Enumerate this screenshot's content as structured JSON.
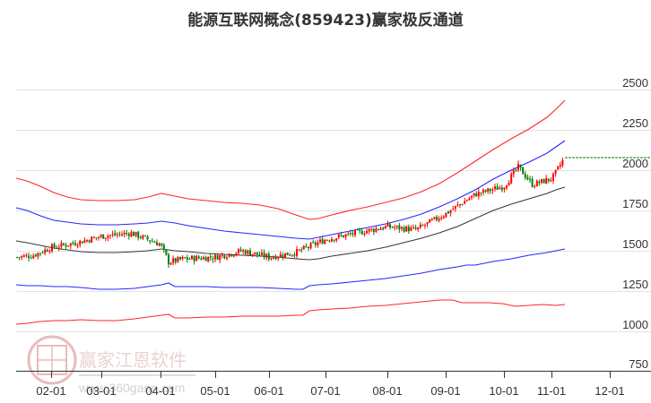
{
  "title": "能源互联网概念(859423)赢家极反通道",
  "watermark": {
    "brand": "赢家江恩软件",
    "url": "www.360gann.com",
    "seal_chars": [
      "江",
      "赢",
      "恩",
      "家"
    ]
  },
  "colors": {
    "up_candle": "#ff0000",
    "down_candle": "#008000",
    "outer_band": "#ff0000",
    "inner_band": "#0000ff",
    "middle_line": "#000000",
    "last_price_line": "#008000",
    "grid": "#e0e0e0",
    "axis": "#333333"
  },
  "chart_data": {
    "type": "candlestick",
    "title": "能源互联网概念(859423)赢家极反通道",
    "xlabel": "",
    "ylabel": "",
    "ylim": [
      750,
      2500
    ],
    "y_ticks": [
      2500,
      2250,
      2000,
      1750,
      1500,
      1250,
      1000,
      750
    ],
    "x_ticks": [
      "02-01",
      "03-01",
      "04-01",
      "05-01",
      "06-01",
      "07-01",
      "08-01",
      "09-01",
      "10-01",
      "11-01",
      "12-01"
    ],
    "grid": true,
    "y_axis_position": "right",
    "last_price": 2030,
    "series": [
      {
        "name": "upper_outer_band",
        "color": "#ff0000",
        "x": [
          "01-10",
          "02-01",
          "03-01",
          "04-01",
          "05-01",
          "06-01",
          "06-20",
          "07-01",
          "08-01",
          "09-01",
          "10-01",
          "11-01",
          "11-10"
        ],
        "values": [
          1930,
          1830,
          1790,
          1800,
          1780,
          1730,
          1670,
          1690,
          1790,
          1900,
          2110,
          2340,
          2420
        ]
      },
      {
        "name": "upper_inner_band",
        "color": "#0000ff",
        "x": [
          "01-10",
          "02-01",
          "03-01",
          "04-01",
          "05-01",
          "06-01",
          "06-20",
          "07-01",
          "08-01",
          "09-01",
          "10-01",
          "11-01",
          "11-10"
        ],
        "values": [
          1760,
          1680,
          1640,
          1660,
          1640,
          1600,
          1560,
          1580,
          1650,
          1760,
          1920,
          2110,
          2170
        ]
      },
      {
        "name": "middle_line",
        "color": "#000000",
        "x": [
          "01-10",
          "02-01",
          "03-01",
          "04-01",
          "05-01",
          "06-01",
          "06-20",
          "07-01",
          "08-01",
          "09-01",
          "10-01",
          "11-01",
          "11-10"
        ],
        "values": [
          1550,
          1500,
          1475,
          1480,
          1465,
          1445,
          1430,
          1460,
          1520,
          1600,
          1720,
          1820,
          1870
        ]
      },
      {
        "name": "lower_inner_band",
        "color": "#0000ff",
        "x": [
          "01-10",
          "02-01",
          "03-01",
          "04-01",
          "05-01",
          "06-01",
          "06-20",
          "07-01",
          "08-01",
          "09-01",
          "10-01",
          "11-01",
          "11-10"
        ],
        "values": [
          1280,
          1270,
          1250,
          1280,
          1260,
          1255,
          1250,
          1275,
          1330,
          1380,
          1440,
          1480,
          1490
        ]
      },
      {
        "name": "lower_outer_band",
        "color": "#ff0000",
        "x": [
          "01-10",
          "02-01",
          "03-01",
          "04-01",
          "05-01",
          "06-01",
          "06-20",
          "07-01",
          "08-01",
          "09-01",
          "10-01",
          "11-01",
          "11-10"
        ],
        "values": [
          1020,
          1045,
          1030,
          1080,
          1050,
          1060,
          1060,
          1085,
          1115,
          1140,
          1120,
          1150,
          1150
        ]
      },
      {
        "name": "price_close",
        "x": [
          "01-10",
          "01-20",
          "02-01",
          "02-15",
          "03-01",
          "03-15",
          "04-01",
          "04-05",
          "04-15",
          "05-01",
          "05-15",
          "06-01",
          "06-15",
          "07-01",
          "07-15",
          "08-01",
          "08-15",
          "09-01",
          "09-15",
          "10-01",
          "10-10",
          "10-20",
          "11-01",
          "11-10"
        ],
        "values": [
          1410,
          1420,
          1470,
          1500,
          1540,
          1560,
          1490,
          1380,
          1400,
          1410,
          1450,
          1410,
          1440,
          1520,
          1560,
          1600,
          1580,
          1680,
          1800,
          1850,
          1970,
          1860,
          1900,
          2030
        ]
      }
    ]
  },
  "y_axis": {
    "labels": [
      "2500",
      "2250",
      "2000",
      "1750",
      "1500",
      "1250",
      "1000",
      "750"
    ]
  },
  "x_axis": {
    "labels": [
      "02-01",
      "03-01",
      "04-01",
      "05-01",
      "06-01",
      "07-01",
      "08-01",
      "09-01",
      "10-01",
      "11-01",
      "12-01"
    ]
  }
}
